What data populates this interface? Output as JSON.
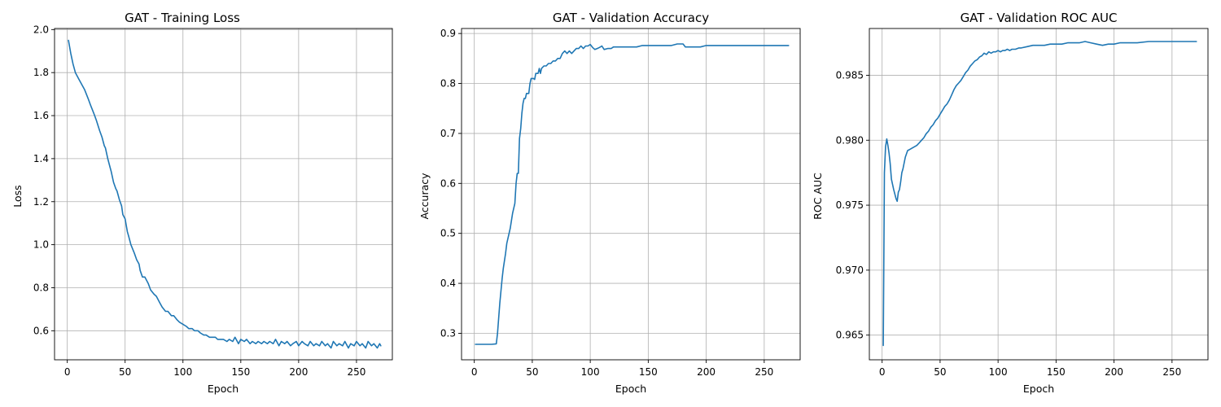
{
  "chart_data": [
    {
      "type": "line",
      "title": "GAT - Training Loss",
      "xlabel": "Epoch",
      "ylabel": "Loss",
      "xlim": [
        -11,
        281
      ],
      "ylim": [
        0.465,
        2.005
      ],
      "xticks": [
        0,
        50,
        100,
        150,
        200,
        250
      ],
      "yticks": [
        0.6,
        0.8,
        1.0,
        1.2,
        1.4,
        1.6,
        1.8,
        2.0
      ],
      "ytick_labels": [
        "0.6",
        "0.8",
        "1.0",
        "1.2",
        "1.4",
        "1.6",
        "1.8",
        "2.0"
      ],
      "grid": true,
      "color": "#1f77b4",
      "series": [
        {
          "x": [
            1,
            3,
            5,
            7,
            10,
            13,
            15,
            18,
            20,
            23,
            25,
            28,
            30,
            32,
            33,
            35,
            37,
            38,
            40,
            42,
            43,
            45,
            47,
            48,
            50,
            52,
            53,
            55,
            58,
            60,
            62,
            63,
            65,
            67,
            70,
            72,
            75,
            77,
            80,
            82,
            85,
            87,
            90,
            92,
            95,
            97,
            100,
            103,
            105,
            108,
            110,
            113,
            115,
            118,
            120,
            123,
            125,
            128,
            130,
            133,
            135,
            138,
            140,
            143,
            145,
            148,
            150,
            153,
            155,
            158,
            160,
            163,
            165,
            168,
            170,
            173,
            175,
            178,
            180,
            183,
            185,
            188,
            190,
            193,
            195,
            198,
            200,
            203,
            205,
            208,
            210,
            213,
            215,
            218,
            220,
            223,
            225,
            228,
            230,
            233,
            235,
            238,
            240,
            243,
            245,
            248,
            250,
            253,
            255,
            258,
            260,
            263,
            265,
            268,
            270,
            271
          ],
          "y": [
            1.95,
            1.89,
            1.84,
            1.8,
            1.77,
            1.74,
            1.72,
            1.68,
            1.65,
            1.61,
            1.58,
            1.53,
            1.5,
            1.46,
            1.45,
            1.4,
            1.36,
            1.34,
            1.29,
            1.26,
            1.25,
            1.21,
            1.18,
            1.14,
            1.12,
            1.06,
            1.04,
            1.0,
            0.96,
            0.93,
            0.91,
            0.88,
            0.85,
            0.85,
            0.82,
            0.79,
            0.77,
            0.76,
            0.73,
            0.71,
            0.69,
            0.69,
            0.67,
            0.67,
            0.65,
            0.64,
            0.63,
            0.62,
            0.61,
            0.61,
            0.6,
            0.6,
            0.59,
            0.58,
            0.58,
            0.57,
            0.57,
            0.57,
            0.56,
            0.56,
            0.56,
            0.55,
            0.56,
            0.55,
            0.57,
            0.54,
            0.56,
            0.55,
            0.56,
            0.54,
            0.55,
            0.54,
            0.55,
            0.54,
            0.55,
            0.54,
            0.55,
            0.54,
            0.56,
            0.53,
            0.55,
            0.54,
            0.55,
            0.53,
            0.54,
            0.55,
            0.53,
            0.55,
            0.54,
            0.53,
            0.55,
            0.53,
            0.54,
            0.53,
            0.55,
            0.53,
            0.54,
            0.52,
            0.55,
            0.53,
            0.54,
            0.53,
            0.55,
            0.52,
            0.54,
            0.53,
            0.55,
            0.53,
            0.54,
            0.52,
            0.55,
            0.53,
            0.54,
            0.52,
            0.54,
            0.53
          ]
        }
      ]
    },
    {
      "type": "line",
      "title": "GAT - Validation Accuracy",
      "xlabel": "Epoch",
      "ylabel": "Accuracy",
      "xlim": [
        -11,
        281
      ],
      "ylim": [
        0.247,
        0.91
      ],
      "xticks": [
        0,
        50,
        100,
        150,
        200,
        250
      ],
      "yticks": [
        0.3,
        0.4,
        0.5,
        0.6,
        0.7,
        0.8,
        0.9
      ],
      "ytick_labels": [
        "0.3",
        "0.4",
        "0.5",
        "0.6",
        "0.7",
        "0.8",
        "0.9"
      ],
      "grid": true,
      "color": "#1f77b4",
      "series": [
        {
          "x": [
            1,
            5,
            10,
            15,
            19,
            20,
            21,
            22,
            24,
            25,
            27,
            28,
            30,
            31,
            33,
            35,
            36,
            37,
            38,
            39,
            40,
            41,
            42,
            43,
            44,
            45,
            47,
            48,
            49,
            50,
            51,
            52,
            53,
            55,
            56,
            57,
            58,
            60,
            62,
            64,
            66,
            68,
            70,
            72,
            74,
            76,
            78,
            80,
            82,
            84,
            86,
            88,
            90,
            92,
            94,
            96,
            98,
            100,
            102,
            104,
            106,
            108,
            110,
            112,
            115,
            118,
            120,
            125,
            130,
            140,
            145,
            150,
            160,
            170,
            175,
            180,
            182,
            190,
            195,
            200,
            230,
            271
          ],
          "y": [
            0.278,
            0.278,
            0.278,
            0.278,
            0.279,
            0.3,
            0.33,
            0.36,
            0.41,
            0.43,
            0.46,
            0.48,
            0.5,
            0.51,
            0.54,
            0.56,
            0.6,
            0.62,
            0.62,
            0.69,
            0.71,
            0.74,
            0.76,
            0.77,
            0.77,
            0.78,
            0.78,
            0.8,
            0.81,
            0.81,
            0.81,
            0.808,
            0.82,
            0.82,
            0.83,
            0.82,
            0.83,
            0.835,
            0.835,
            0.84,
            0.84,
            0.845,
            0.845,
            0.85,
            0.85,
            0.86,
            0.865,
            0.86,
            0.865,
            0.86,
            0.865,
            0.87,
            0.87,
            0.875,
            0.87,
            0.875,
            0.875,
            0.878,
            0.872,
            0.868,
            0.87,
            0.872,
            0.875,
            0.868,
            0.87,
            0.87,
            0.873,
            0.873,
            0.873,
            0.873,
            0.876,
            0.876,
            0.876,
            0.876,
            0.879,
            0.879,
            0.873,
            0.873,
            0.873,
            0.876,
            0.876,
            0.876
          ]
        }
      ]
    },
    {
      "type": "line",
      "title": "GAT - Validation ROC AUC",
      "xlabel": "Epoch",
      "ylabel": "ROC AUC",
      "xlim": [
        -11,
        281
      ],
      "ylim": [
        0.9631,
        0.9886
      ],
      "xticks": [
        0,
        50,
        100,
        150,
        200,
        250
      ],
      "yticks": [
        0.965,
        0.97,
        0.975,
        0.98,
        0.985
      ],
      "ytick_labels": [
        "0.965",
        "0.970",
        "0.975",
        "0.980",
        "0.985"
      ],
      "grid": true,
      "color": "#1f77b4",
      "series": [
        {
          "x": [
            1,
            2,
            3,
            4,
            5,
            6,
            7,
            8,
            10,
            12,
            13,
            14,
            15,
            16,
            17,
            18,
            20,
            22,
            24,
            26,
            28,
            30,
            32,
            34,
            36,
            38,
            40,
            42,
            44,
            46,
            48,
            50,
            52,
            54,
            56,
            58,
            60,
            62,
            64,
            66,
            68,
            70,
            72,
            74,
            76,
            78,
            80,
            82,
            84,
            86,
            88,
            90,
            92,
            94,
            96,
            98,
            100,
            102,
            104,
            106,
            108,
            110,
            112,
            115,
            118,
            120,
            125,
            130,
            135,
            140,
            145,
            150,
            155,
            160,
            170,
            175,
            180,
            185,
            190,
            195,
            200,
            205,
            210,
            220,
            230,
            240,
            250,
            260,
            271
          ],
          "y": [
            0.9642,
            0.9775,
            0.9795,
            0.9801,
            0.9796,
            0.979,
            0.9782,
            0.977,
            0.9762,
            0.9755,
            0.9753,
            0.976,
            0.9762,
            0.9768,
            0.9775,
            0.9778,
            0.9787,
            0.9792,
            0.9793,
            0.9794,
            0.9795,
            0.9796,
            0.9798,
            0.98,
            0.9802,
            0.9805,
            0.9807,
            0.981,
            0.9812,
            0.9815,
            0.9817,
            0.982,
            0.9823,
            0.9826,
            0.9828,
            0.9831,
            0.9835,
            0.9839,
            0.9842,
            0.9844,
            0.9846,
            0.9849,
            0.9852,
            0.9854,
            0.9857,
            0.9859,
            0.9861,
            0.9862,
            0.9864,
            0.9865,
            0.9867,
            0.9866,
            0.9868,
            0.9867,
            0.9868,
            0.9868,
            0.9869,
            0.9868,
            0.9869,
            0.9869,
            0.987,
            0.9869,
            0.987,
            0.987,
            0.9871,
            0.9871,
            0.9872,
            0.9873,
            0.9873,
            0.9873,
            0.9874,
            0.9874,
            0.9874,
            0.9875,
            0.9875,
            0.9876,
            0.9875,
            0.9874,
            0.9873,
            0.9874,
            0.9874,
            0.9875,
            0.9875,
            0.9875,
            0.9876,
            0.9876,
            0.9876,
            0.9876,
            0.9876
          ]
        }
      ]
    }
  ]
}
